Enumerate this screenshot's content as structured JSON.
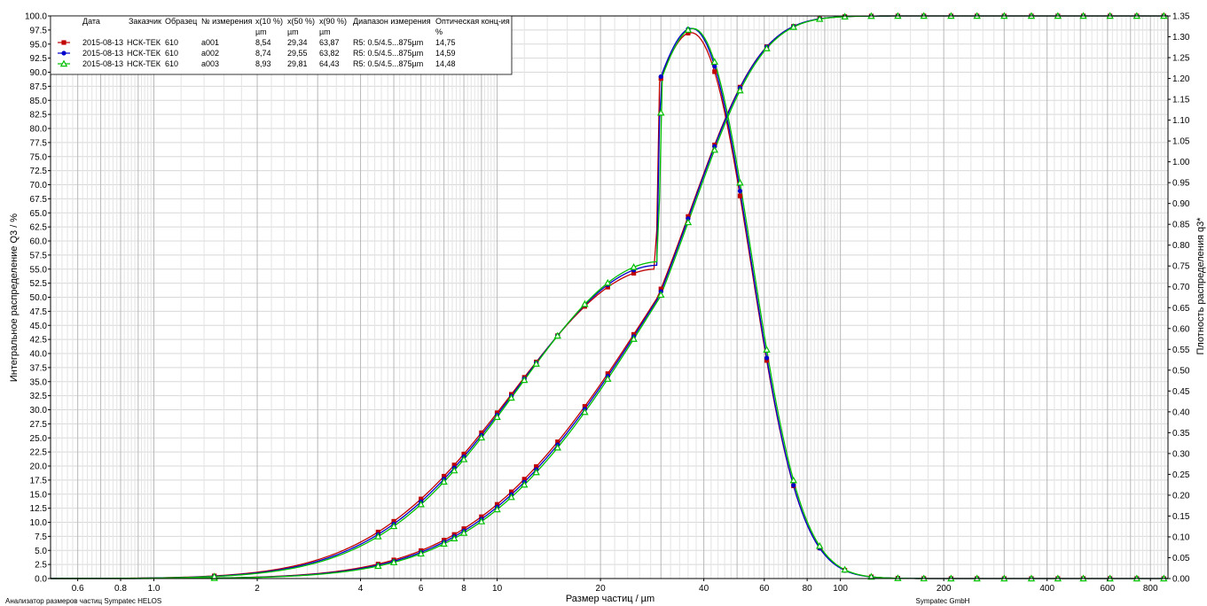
{
  "chart_data": {
    "type": "line",
    "xlabel": "Размер частиц / µm",
    "ylabel_left": "Интегральное распределение Q3 / %",
    "ylabel_right": "Плотность распределения q3*",
    "x_scale": "log",
    "xlim": [
      0.5,
      900
    ],
    "ylim_left": [
      0,
      100
    ],
    "ylim_right": [
      0,
      1.35
    ],
    "grid": true,
    "legend_position": "top-left",
    "x_ticks": [
      "0.6",
      "0.8",
      "1.0",
      "2",
      "4",
      "6",
      "8",
      "10",
      "20",
      "40",
      "60",
      "80",
      "100",
      "200",
      "400",
      "600",
      "800"
    ],
    "x_tick_values": [
      0.6,
      0.8,
      1.0,
      2,
      4,
      6,
      8,
      10,
      20,
      40,
      60,
      80,
      100,
      200,
      400,
      600,
      800
    ],
    "legend": {
      "headers": [
        "Дата",
        "Заказчик",
        "Образец",
        "№ измерения",
        "x(10 %)",
        "x(50 %)",
        "x(90 %)",
        "Диапазон измерения",
        "Оптическая конц-ия"
      ],
      "units": [
        "",
        "",
        "",
        "",
        "µm",
        "µm",
        "µm",
        "",
        "%"
      ],
      "rows": [
        {
          "date": "2015-08-13",
          "customer": "НСК-ТЕК",
          "sample": "610",
          "measurement": "a001",
          "x10": "8,54",
          "x50": "29,34",
          "x90": "63,87",
          "range": "R5: 0.5/4.5...875µm",
          "conc": "14,75"
        },
        {
          "date": "2015-08-13",
          "customer": "НСК-ТЕК",
          "sample": "610",
          "measurement": "a002",
          "x10": "8,74",
          "x50": "29,55",
          "x90": "63,82",
          "range": "R5: 0.5/4.5...875µm",
          "conc": "14,59"
        },
        {
          "date": "2015-08-13",
          "customer": "НСК-ТЕК",
          "sample": "610",
          "measurement": "a003",
          "x10": "8,93",
          "x50": "29,81",
          "x90": "64,43",
          "range": "R5: 0.5/4.5...875µm",
          "conc": "14,48"
        }
      ]
    },
    "series": [
      {
        "measurement": "a001",
        "color": "#c00000",
        "marker": "square",
        "x10": 8.54,
        "x50": 29.34,
        "x90": 63.87,
        "q3_peak": 1.31
      },
      {
        "measurement": "a002",
        "color": "#0000cc",
        "marker": "circle",
        "x10": 8.74,
        "x50": 29.55,
        "x90": 63.82,
        "q3_peak": 1.32
      },
      {
        "measurement": "a003",
        "color": "#00c000",
        "marker": "triangle",
        "x10": 8.93,
        "x50": 29.81,
        "x90": 64.43,
        "q3_peak": 1.32
      }
    ],
    "x_markers": [
      1.5,
      4.5,
      5.0,
      6.0,
      7.0,
      7.5,
      8.0,
      9.0,
      10.0,
      11.0,
      12.0,
      13.0,
      15.0,
      18.0,
      21.0,
      25.0,
      30.0,
      36.0,
      43.0,
      51.0,
      61.0,
      73.0,
      87.0,
      103.0,
      123.0,
      147.0,
      175.0,
      210.0,
      250.0,
      300.0,
      360.0,
      430.0,
      510.0,
      610.0,
      730.0,
      875.0
    ]
  },
  "footer": {
    "left": "Анализатор размеров частиц Sympatec HELOS",
    "right": "Sympatec GmbH"
  }
}
